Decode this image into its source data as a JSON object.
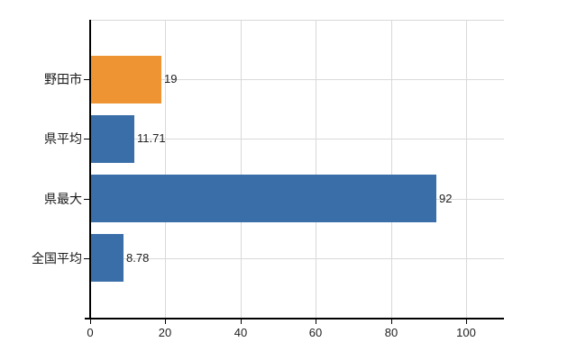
{
  "chart_data": {
    "type": "bar",
    "orientation": "horizontal",
    "title": "",
    "xlabel": "",
    "ylabel": "",
    "categories": [
      "野田市",
      "県平均",
      "県最大",
      "全国平均"
    ],
    "values": [
      19,
      11.71,
      92,
      8.78
    ],
    "value_labels": [
      "19",
      "11.71",
      "92",
      "8.78"
    ],
    "bar_colors": [
      "#ee9432",
      "#3a6ea9",
      "#3a6ea9",
      "#3a6ea9"
    ],
    "x_ticks": [
      0,
      20,
      40,
      60,
      80,
      100
    ],
    "x_tick_labels": [
      "0",
      "20",
      "40",
      "60",
      "80",
      "100"
    ],
    "xlim": [
      0,
      110
    ],
    "grid": true,
    "legend": "none",
    "colors": {
      "bar_orange": "#ee9432",
      "bar_blue": "#3a6ea9",
      "gridline": "#d9d9d9",
      "axis": "#000000",
      "text": "#1a1a1a",
      "background": "#ffffff"
    }
  }
}
